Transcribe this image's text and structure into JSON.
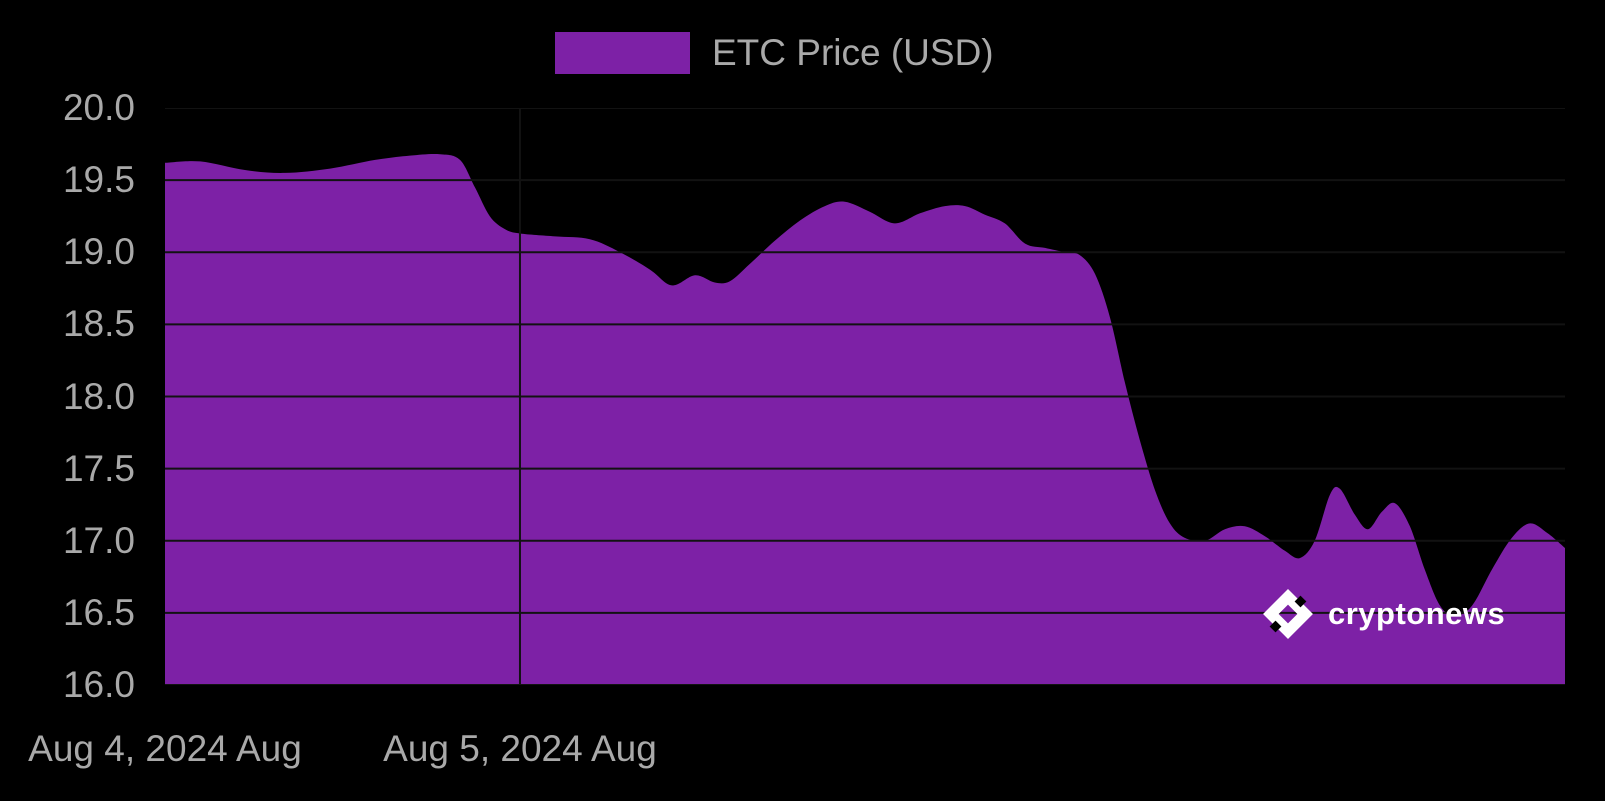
{
  "page": {
    "background": "#000000"
  },
  "legend": {
    "label": "ETC Price (USD)",
    "swatch_color": "#7d21a6"
  },
  "axes": {
    "y_ticks": [
      "20.0",
      "19.5",
      "19.0",
      "18.5",
      "18.0",
      "17.5",
      "17.0",
      "16.5",
      "16.0"
    ],
    "x_ticks": [
      "Aug 4, 2024 Aug",
      "Aug 5, 2024 Aug"
    ]
  },
  "watermark": {
    "brand": "cryptonews",
    "icon": "cryptonews-logo-icon"
  },
  "chart_data": {
    "type": "area",
    "title": "",
    "series_name": "ETC Price (USD)",
    "xlabel": "Date",
    "ylabel": "ETC Price (USD)",
    "x_unit": "days since Aug 4, 2024",
    "xlim": [
      0,
      3.944
    ],
    "ylim": [
      16.0,
      20.0
    ],
    "grid": true,
    "grid_step": 0.5,
    "grid_color": "#121212",
    "area_color": "#7d21a6",
    "legend_position": "top",
    "x_tick_positions_days": [
      0,
      1
    ],
    "x_tick_labels": [
      "Aug 4, 2024 Aug",
      "Aug 5, 2024 Aug"
    ],
    "x_grid_days": [
      1
    ],
    "points": [
      [
        0.0,
        19.62
      ],
      [
        0.099,
        19.63
      ],
      [
        0.225,
        19.57
      ],
      [
        0.338,
        19.55
      ],
      [
        0.465,
        19.58
      ],
      [
        0.592,
        19.64
      ],
      [
        0.69,
        19.67
      ],
      [
        0.775,
        19.68
      ],
      [
        0.831,
        19.64
      ],
      [
        0.873,
        19.45
      ],
      [
        0.915,
        19.25
      ],
      [
        0.958,
        19.16
      ],
      [
        1.0,
        19.13
      ],
      [
        1.099,
        19.11
      ],
      [
        1.197,
        19.09
      ],
      [
        1.282,
        19.0
      ],
      [
        1.366,
        18.88
      ],
      [
        1.428,
        18.77
      ],
      [
        1.493,
        18.84
      ],
      [
        1.549,
        18.79
      ],
      [
        1.592,
        18.8
      ],
      [
        1.648,
        18.92
      ],
      [
        1.718,
        19.08
      ],
      [
        1.789,
        19.22
      ],
      [
        1.859,
        19.32
      ],
      [
        1.915,
        19.35
      ],
      [
        1.986,
        19.28
      ],
      [
        2.056,
        19.2
      ],
      [
        2.127,
        19.27
      ],
      [
        2.197,
        19.32
      ],
      [
        2.254,
        19.32
      ],
      [
        2.31,
        19.26
      ],
      [
        2.366,
        19.2
      ],
      [
        2.423,
        19.06
      ],
      [
        2.479,
        19.03
      ],
      [
        2.535,
        19.0
      ],
      [
        2.577,
        18.98
      ],
      [
        2.62,
        18.85
      ],
      [
        2.662,
        18.55
      ],
      [
        2.704,
        18.1
      ],
      [
        2.746,
        17.7
      ],
      [
        2.789,
        17.35
      ],
      [
        2.831,
        17.12
      ],
      [
        2.873,
        17.02
      ],
      [
        2.93,
        17.0
      ],
      [
        2.986,
        17.08
      ],
      [
        3.042,
        17.1
      ],
      [
        3.099,
        17.03
      ],
      [
        3.155,
        16.93
      ],
      [
        3.197,
        16.88
      ],
      [
        3.239,
        17.0
      ],
      [
        3.282,
        17.32
      ],
      [
        3.31,
        17.36
      ],
      [
        3.352,
        17.18
      ],
      [
        3.389,
        17.08
      ],
      [
        3.428,
        17.2
      ],
      [
        3.465,
        17.26
      ],
      [
        3.507,
        17.1
      ],
      [
        3.549,
        16.8
      ],
      [
        3.592,
        16.55
      ],
      [
        3.634,
        16.48
      ],
      [
        3.682,
        16.55
      ],
      [
        3.738,
        16.8
      ],
      [
        3.794,
        17.02
      ],
      [
        3.845,
        17.12
      ],
      [
        3.896,
        17.05
      ],
      [
        3.944,
        16.95
      ]
    ]
  }
}
